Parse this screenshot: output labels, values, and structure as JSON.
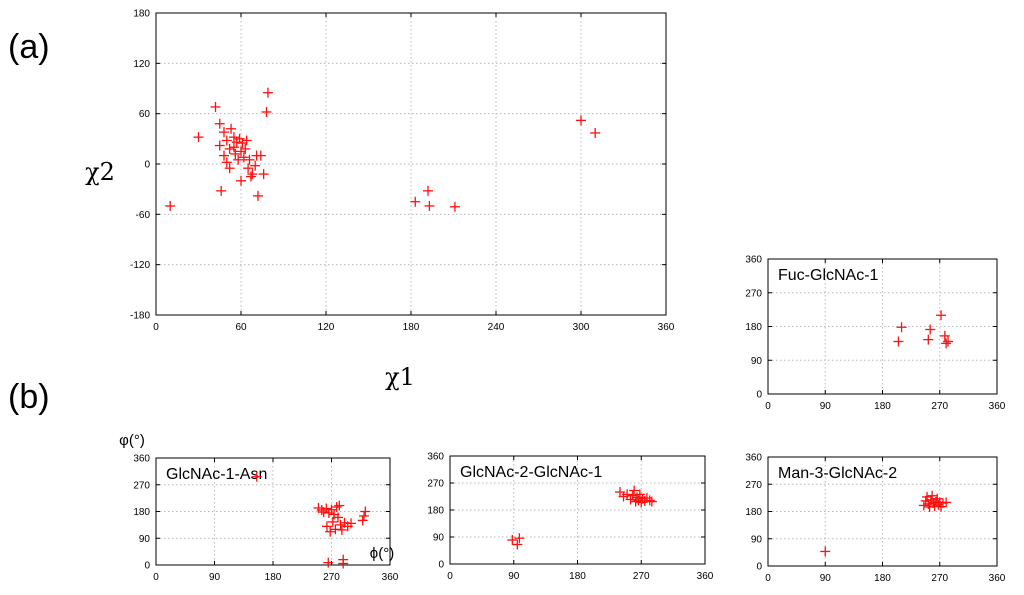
{
  "panel_labels": {
    "a": "(a)",
    "b": "(b)"
  },
  "chart_data": [
    {
      "id": "chi",
      "type": "scatter",
      "title": "",
      "xlabel": "χ1",
      "ylabel": "χ2",
      "xlim": [
        0,
        360
      ],
      "ylim": [
        -180,
        180
      ],
      "xticks": [
        "0",
        "60",
        "120",
        "180",
        "240",
        "300",
        "360"
      ],
      "yticks": [
        "-180",
        "-120",
        "-60",
        "0",
        "60",
        "120",
        "180"
      ],
      "grid": true,
      "marker_color": "#ff1010",
      "points": [
        [
          10,
          -50
        ],
        [
          30,
          32
        ],
        [
          42,
          68
        ],
        [
          45,
          48
        ],
        [
          45,
          22
        ],
        [
          46,
          -32
        ],
        [
          48,
          10
        ],
        [
          48,
          38
        ],
        [
          50,
          2
        ],
        [
          50,
          28
        ],
        [
          52,
          -5
        ],
        [
          52,
          18
        ],
        [
          53,
          42
        ],
        [
          55,
          32
        ],
        [
          55,
          20
        ],
        [
          56,
          12
        ],
        [
          57,
          26
        ],
        [
          58,
          5
        ],
        [
          59,
          30
        ],
        [
          60,
          15
        ],
        [
          60,
          -20
        ],
        [
          61,
          25
        ],
        [
          62,
          8
        ],
        [
          63,
          18
        ],
        [
          64,
          28
        ],
        [
          65,
          -5
        ],
        [
          66,
          5
        ],
        [
          67,
          -15
        ],
        [
          68,
          -12
        ],
        [
          70,
          -2
        ],
        [
          71,
          10
        ],
        [
          72,
          -38
        ],
        [
          74,
          10
        ],
        [
          76,
          -12
        ],
        [
          78,
          62
        ],
        [
          79,
          85
        ],
        [
          183,
          -45
        ],
        [
          192,
          -32
        ],
        [
          193,
          -50
        ],
        [
          211,
          -51
        ],
        [
          300,
          52
        ],
        [
          310,
          37
        ]
      ]
    },
    {
      "id": "glcnac1asn",
      "type": "scatter",
      "title": "GlcNAc-1-Asn",
      "xlabel": "ϕ(°)",
      "ylabel": "φ(°)",
      "xlim": [
        0,
        360
      ],
      "ylim": [
        0,
        360
      ],
      "xticks": [
        "0",
        "90",
        "180",
        "270",
        "360"
      ],
      "yticks": [
        "0",
        "90",
        "180",
        "270",
        "360"
      ],
      "grid": true,
      "marker_color": "#ff1010",
      "points": [
        [
          155,
          297
        ],
        [
          250,
          192
        ],
        [
          255,
          185
        ],
        [
          258,
          178
        ],
        [
          262,
          190
        ],
        [
          263,
          130
        ],
        [
          265,
          8
        ],
        [
          266,
          175
        ],
        [
          268,
          112
        ],
        [
          270,
          186
        ],
        [
          272,
          145
        ],
        [
          274,
          170
        ],
        [
          276,
          120
        ],
        [
          278,
          195
        ],
        [
          280,
          160
        ],
        [
          282,
          200
        ],
        [
          284,
          135
        ],
        [
          286,
          118
        ],
        [
          288,
          5
        ],
        [
          288,
          18
        ],
        [
          290,
          142
        ],
        [
          295,
          130
        ],
        [
          300,
          140
        ],
        [
          318,
          150
        ],
        [
          320,
          165
        ],
        [
          322,
          180
        ]
      ]
    },
    {
      "id": "glcnac2glcnac1",
      "type": "scatter",
      "title": "GlcNAc-2-GlcNAc-1",
      "xlabel": "",
      "ylabel": "",
      "xlim": [
        0,
        360
      ],
      "ylim": [
        0,
        360
      ],
      "xticks": [
        "0",
        "90",
        "180",
        "270",
        "360"
      ],
      "yticks": [
        "0",
        "90",
        "180",
        "270",
        "360"
      ],
      "grid": true,
      "marker_color": "#ff1010",
      "points": [
        [
          88,
          80
        ],
        [
          95,
          65
        ],
        [
          98,
          86
        ],
        [
          240,
          240
        ],
        [
          245,
          225
        ],
        [
          250,
          232
        ],
        [
          255,
          215
        ],
        [
          258,
          228
        ],
        [
          260,
          245
        ],
        [
          262,
          208
        ],
        [
          264,
          222
        ],
        [
          266,
          212
        ],
        [
          268,
          232
        ],
        [
          270,
          205
        ],
        [
          272,
          218
        ],
        [
          275,
          210
        ],
        [
          278,
          220
        ],
        [
          282,
          212
        ],
        [
          285,
          208
        ]
      ]
    },
    {
      "id": "fucglcnac1",
      "type": "scatter",
      "title": "Fuc-GlcNAc-1",
      "xlabel": "",
      "ylabel": "",
      "xlim": [
        0,
        360
      ],
      "ylim": [
        0,
        360
      ],
      "xticks": [
        "0",
        "90",
        "180",
        "270",
        "360"
      ],
      "yticks": [
        "0",
        "90",
        "180",
        "270",
        "360"
      ],
      "grid": true,
      "marker_color": "#ff1010",
      "points": [
        [
          205,
          140
        ],
        [
          210,
          178
        ],
        [
          252,
          145
        ],
        [
          255,
          172
        ],
        [
          272,
          210
        ],
        [
          278,
          155
        ],
        [
          280,
          135
        ],
        [
          283,
          140
        ]
      ]
    },
    {
      "id": "man3glcnac2",
      "type": "scatter",
      "title": "Man-3-GlcNAc-2",
      "xlabel": "",
      "ylabel": "",
      "xlim": [
        0,
        360
      ],
      "ylim": [
        0,
        360
      ],
      "xticks": [
        "0",
        "90",
        "180",
        "270",
        "360"
      ],
      "yticks": [
        "0",
        "90",
        "180",
        "270",
        "360"
      ],
      "grid": true,
      "marker_color": "#ff1010",
      "points": [
        [
          90,
          48
        ],
        [
          245,
          200
        ],
        [
          248,
          215
        ],
        [
          250,
          228
        ],
        [
          252,
          205
        ],
        [
          254,
          195
        ],
        [
          256,
          218
        ],
        [
          258,
          232
        ],
        [
          260,
          208
        ],
        [
          262,
          198
        ],
        [
          264,
          212
        ],
        [
          266,
          222
        ],
        [
          268,
          202
        ],
        [
          270,
          210
        ],
        [
          272,
          196
        ],
        [
          275,
          208
        ],
        [
          280,
          210
        ]
      ]
    }
  ]
}
